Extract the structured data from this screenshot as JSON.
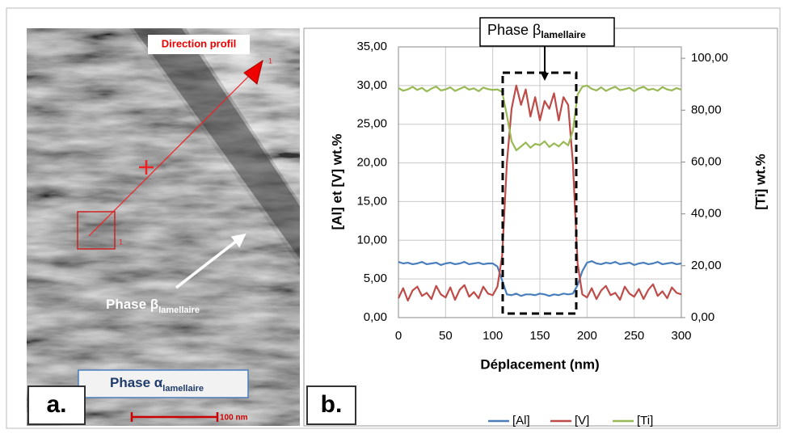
{
  "image_panel": {
    "label": "a.",
    "direction_label": "Direction profil",
    "profile_start": "1",
    "profile_end": "1",
    "beta_label": {
      "text": "Phase β",
      "subscript": "lamellaire"
    },
    "alpha_label": {
      "text": "Phase α",
      "subscript": "lamellaire"
    },
    "scale_bar": "100 nm"
  },
  "chart_panel": {
    "label": "b.",
    "annotation": {
      "text": "Phase β",
      "subscript": "lamellaire"
    }
  },
  "chart_data": {
    "type": "line",
    "x_label": "Déplacement (nm)",
    "y_label": "[Al] et [V] wt.%",
    "y2_label": "[Ti] wt.%",
    "x": [
      0,
      5,
      10,
      15,
      20,
      25,
      30,
      35,
      40,
      45,
      50,
      55,
      60,
      65,
      70,
      75,
      80,
      85,
      90,
      95,
      100,
      105,
      110,
      115,
      120,
      125,
      130,
      135,
      140,
      145,
      150,
      155,
      160,
      165,
      170,
      175,
      180,
      185,
      190,
      195,
      200,
      205,
      210,
      215,
      220,
      225,
      230,
      235,
      240,
      245,
      250,
      255,
      260,
      265,
      270,
      275,
      280,
      285,
      290,
      295,
      300
    ],
    "xlim": [
      0,
      300
    ],
    "xticks": [
      0,
      50,
      100,
      150,
      200,
      250,
      300
    ],
    "ylim": [
      0,
      35
    ],
    "yticks": [
      {
        "value": 0,
        "label": "0,00"
      },
      {
        "value": 5,
        "label": "5,00"
      },
      {
        "value": 10,
        "label": "10,00"
      },
      {
        "value": 15,
        "label": "15,00"
      },
      {
        "value": 20,
        "label": "20,00"
      },
      {
        "value": 25,
        "label": "25,00"
      },
      {
        "value": 30,
        "label": "30,00"
      },
      {
        "value": 35,
        "label": "35,00"
      }
    ],
    "y2lim": [
      0,
      104.4
    ],
    "y2ticks": [
      {
        "value": 0,
        "label": "0,00"
      },
      {
        "value": 20,
        "label": "20,00"
      },
      {
        "value": 40,
        "label": "40,00"
      },
      {
        "value": 60,
        "label": "60,00"
      },
      {
        "value": 80,
        "label": "80,00"
      },
      {
        "value": 100,
        "label": "100,00"
      }
    ],
    "grid": true,
    "legend": "bottom",
    "series": [
      {
        "name": "[Al]",
        "color": "#4a7ebb",
        "values": [
          7.2,
          7.0,
          7.1,
          6.9,
          7.0,
          7.2,
          6.9,
          7.0,
          7.1,
          6.8,
          7.0,
          7.1,
          6.9,
          7.0,
          7.2,
          6.9,
          7.0,
          7.1,
          6.9,
          7.0,
          7.0,
          6.6,
          4.8,
          3.0,
          2.9,
          3.1,
          2.8,
          3.0,
          3.0,
          2.9,
          3.1,
          3.0,
          2.8,
          3.0,
          2.9,
          3.1,
          3.0,
          3.1,
          4.2,
          6.0,
          7.1,
          7.3,
          7.0,
          6.9,
          7.1,
          7.0,
          7.2,
          6.9,
          7.0,
          7.1,
          6.8,
          7.0,
          7.1,
          6.9,
          7.0,
          7.2,
          6.9,
          7.0,
          7.1,
          6.9,
          7.0
        ]
      },
      {
        "name": "[V]",
        "color": "#be4b48",
        "values": [
          2.5,
          3.8,
          2.2,
          3.5,
          4.0,
          2.8,
          3.2,
          2.4,
          4.1,
          3.0,
          2.6,
          3.9,
          2.3,
          3.6,
          4.2,
          2.7,
          3.3,
          2.5,
          4.0,
          3.1,
          2.9,
          4.0,
          8.0,
          20.0,
          27.0,
          30.0,
          27.5,
          29.5,
          26.0,
          28.5,
          25.5,
          28.0,
          27.0,
          29.0,
          25.5,
          28.5,
          27.5,
          20.0,
          7.0,
          3.0,
          2.6,
          3.8,
          2.4,
          3.5,
          4.1,
          2.9,
          3.2,
          2.3,
          4.0,
          3.1,
          2.7,
          3.7,
          2.4,
          3.6,
          4.3,
          2.8,
          3.4,
          2.5,
          3.9,
          3.2,
          3.0
        ]
      },
      {
        "name": "[Ti]",
        "color": "#98b954",
        "axis": "y2",
        "values": [
          88.5,
          87.5,
          88.0,
          89.0,
          87.8,
          88.6,
          87.2,
          88.3,
          89.1,
          87.6,
          88.0,
          88.8,
          87.4,
          88.2,
          89.0,
          87.9,
          88.4,
          87.3,
          88.7,
          88.1,
          87.8,
          88.0,
          87.0,
          78.0,
          68.0,
          64.5,
          66.0,
          67.5,
          65.5,
          67.0,
          66.5,
          68.0,
          65.8,
          67.2,
          66.0,
          67.8,
          66.4,
          72.0,
          86.0,
          89.0,
          89.5,
          88.2,
          87.6,
          88.8,
          87.4,
          88.3,
          89.0,
          87.7,
          88.1,
          88.6,
          87.3,
          88.4,
          89.0,
          87.8,
          88.2,
          87.5,
          88.9,
          88.0,
          87.6,
          88.5,
          87.9
        ]
      }
    ]
  }
}
